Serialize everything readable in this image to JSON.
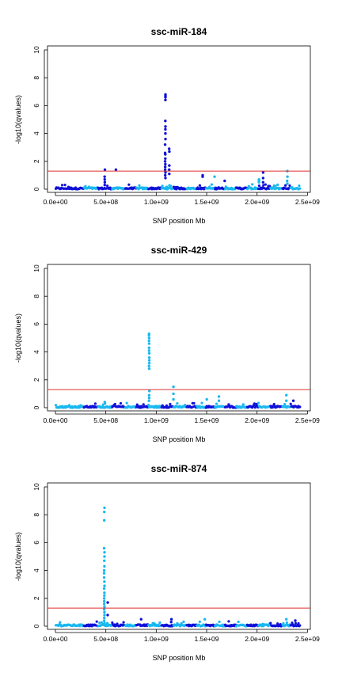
{
  "chart_data": [
    {
      "type": "scatter",
      "title": "ssc-miR-184",
      "xlabel": "SNP position Mb",
      "ylabel": "-log10(qvalues)",
      "xlim": [
        0,
        2450000000
      ],
      "ylim": [
        0,
        10
      ],
      "x_ticks": [
        "0.0e+00",
        "5.0e+08",
        "1.0e+09",
        "1.5e+09",
        "2.0e+09",
        "2.5e+09"
      ],
      "y_ticks": [
        "0",
        "2",
        "4",
        "6",
        "8",
        "10"
      ],
      "threshold": 1.3,
      "colors": {
        "dark": "#1010d8",
        "light": "#1ab8f0",
        "threshold": "#e03030"
      },
      "peaks": [
        {
          "x": 1090000000,
          "color": "dark",
          "values": [
            6.8,
            6.7,
            6.6,
            6.4,
            4.9,
            4.5,
            4.3,
            4.0,
            3.6,
            3.2,
            2.6,
            2.5,
            2.2,
            2.0,
            1.8,
            1.6,
            1.4,
            1.2,
            1.0,
            0.8
          ]
        },
        {
          "x": 1130000000,
          "color": "dark",
          "values": [
            2.9,
            2.7,
            1.7,
            1.4,
            1.1
          ]
        },
        {
          "x": 490000000,
          "color": "dark",
          "values": [
            1.4,
            0.9,
            0.7,
            0.5,
            0.3
          ]
        },
        {
          "x": 600000000,
          "color": "dark",
          "values": [
            1.4
          ]
        },
        {
          "x": 1460000000,
          "color": "dark",
          "values": [
            1.0,
            0.9
          ]
        },
        {
          "x": 1580000000,
          "color": "light",
          "values": [
            0.9
          ]
        },
        {
          "x": 1680000000,
          "color": "dark",
          "values": [
            0.6
          ]
        },
        {
          "x": 2060000000,
          "color": "dark",
          "values": [
            1.2,
            0.8,
            0.5
          ]
        },
        {
          "x": 2020000000,
          "color": "light",
          "values": [
            0.7,
            0.6,
            0.5
          ]
        },
        {
          "x": 2300000000,
          "color": "light",
          "values": [
            1.3,
            0.9,
            0.6,
            0.4
          ]
        }
      ]
    },
    {
      "type": "scatter",
      "title": "ssc-miR-429",
      "xlabel": "SNP position Mb",
      "ylabel": "-log10(qvalues)",
      "xlim": [
        0,
        2450000000
      ],
      "ylim": [
        0,
        10
      ],
      "x_ticks": [
        "0.0e+00",
        "5.0e+08",
        "1.0e+09",
        "1.5e+09",
        "2.0e+09",
        "2.5e+09"
      ],
      "y_ticks": [
        "0",
        "2",
        "4",
        "6",
        "8",
        "10"
      ],
      "threshold": 1.3,
      "colors": {
        "dark": "#1010d8",
        "light": "#1ab8f0",
        "threshold": "#e03030"
      },
      "peaks": [
        {
          "x": 930000000,
          "color": "light",
          "values": [
            5.3,
            5.2,
            5.0,
            4.8,
            4.6,
            4.3,
            4.1,
            3.9,
            3.6,
            3.4,
            3.2,
            3.0,
            2.8,
            1.2,
            0.9,
            0.7,
            0.5
          ]
        },
        {
          "x": 1170000000,
          "color": "light",
          "values": [
            1.5,
            1.0,
            0.6
          ]
        },
        {
          "x": 490000000,
          "color": "light",
          "values": [
            0.4,
            0.3
          ]
        },
        {
          "x": 1620000000,
          "color": "light",
          "values": [
            0.8,
            0.5
          ]
        },
        {
          "x": 1500000000,
          "color": "light",
          "values": [
            0.6
          ]
        },
        {
          "x": 2290000000,
          "color": "light",
          "values": [
            0.9,
            0.5
          ]
        },
        {
          "x": 2360000000,
          "color": "dark",
          "values": [
            0.5
          ]
        }
      ]
    },
    {
      "type": "scatter",
      "title": "ssc-miR-874",
      "xlabel": "SNP position Mb",
      "ylabel": "-log10(qvalues)",
      "xlim": [
        0,
        2450000000
      ],
      "ylim": [
        0,
        10
      ],
      "x_ticks": [
        "0.0e+00",
        "5.0e+08",
        "1.0e+09",
        "1.5e+09",
        "2.0e+09",
        "2.5e+09"
      ],
      "y_ticks": [
        "0",
        "2",
        "4",
        "6",
        "8",
        "10"
      ],
      "threshold": 1.3,
      "colors": {
        "dark": "#1010d8",
        "light": "#1ab8f0",
        "threshold": "#e03030"
      },
      "peaks": [
        {
          "x": 485000000,
          "color": "light",
          "values": [
            8.5,
            8.2,
            7.6,
            5.6,
            5.3,
            5.0,
            4.7,
            4.3,
            4.0,
            3.8,
            3.5,
            3.2,
            2.9,
            2.7,
            2.4,
            2.2,
            2.0,
            1.8,
            1.6,
            1.4,
            1.2,
            1.0,
            0.8,
            0.6,
            0.4
          ]
        },
        {
          "x": 520000000,
          "color": "dark",
          "values": [
            1.7,
            0.8
          ]
        },
        {
          "x": 850000000,
          "color": "dark",
          "values": [
            0.5
          ]
        },
        {
          "x": 1150000000,
          "color": "dark",
          "values": [
            0.5,
            0.3
          ]
        },
        {
          "x": 1480000000,
          "color": "light",
          "values": [
            0.5
          ]
        },
        {
          "x": 2290000000,
          "color": "light",
          "values": [
            0.5
          ]
        },
        {
          "x": 2380000000,
          "color": "dark",
          "values": [
            0.4
          ]
        }
      ]
    }
  ]
}
